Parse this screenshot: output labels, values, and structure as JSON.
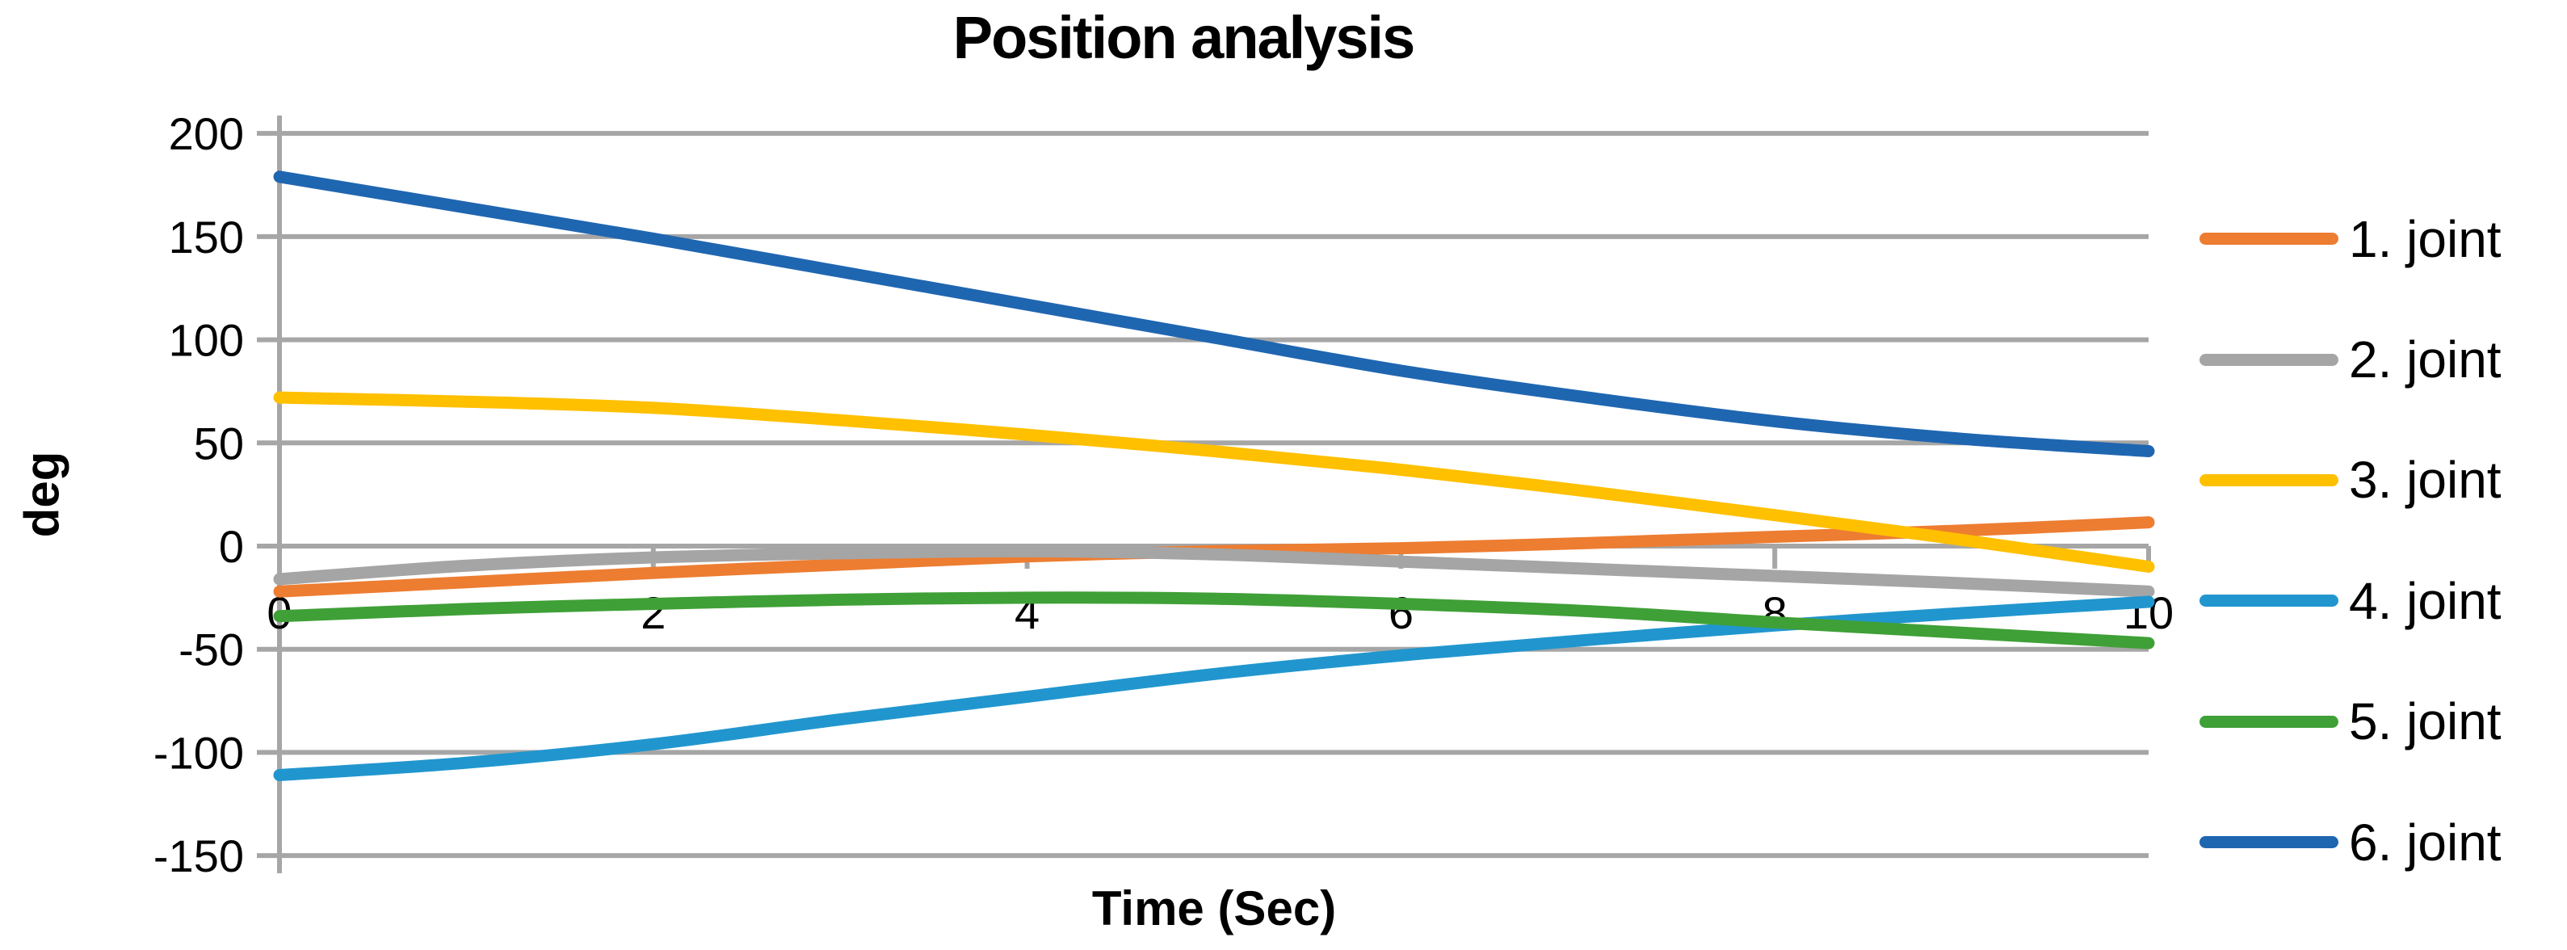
{
  "chart": {
    "title": "Position analysis",
    "axis_color": "#A6A6A6",
    "text_color": "#000000",
    "background": "#FFFFFF",
    "legend_labels": [
      "1. joint",
      "2. joint",
      "3. joint",
      "4. joint",
      "5. joint",
      "6. joint"
    ]
  },
  "chart_data": {
    "type": "line",
    "title": "Position analysis",
    "xlabel": "Time (Sec)",
    "ylabel": "deg",
    "x": [
      0,
      1,
      2,
      3,
      4,
      5,
      6,
      7,
      8,
      9,
      10
    ],
    "x_ticks": [
      0,
      2,
      4,
      6,
      8,
      10
    ],
    "y_ticks": [
      200,
      150,
      100,
      50,
      0,
      -50,
      -100,
      -150
    ],
    "xlim": [
      0,
      10
    ],
    "ylim": [
      -150,
      200
    ],
    "grid": true,
    "legend_position": "right",
    "series": [
      {
        "name": "1. joint",
        "color": "#ED7D31",
        "values": [
          -22,
          -17.5,
          -13,
          -9,
          -5,
          -2.5,
          -1,
          1.5,
          4.5,
          7.5,
          11.5
        ]
      },
      {
        "name": "2. joint",
        "color": "#A5A5A5",
        "values": [
          -16,
          -9.5,
          -5.5,
          -3.5,
          -2.5,
          -4,
          -7.5,
          -11,
          -14.5,
          -18,
          -22
        ]
      },
      {
        "name": "3. joint",
        "color": "#FFC000",
        "values": [
          72,
          70,
          67,
          61,
          54,
          46,
          37,
          26.5,
          15,
          3,
          -10
        ]
      },
      {
        "name": "4. joint",
        "color": "#2196CE",
        "values": [
          -111,
          -105,
          -96,
          -84,
          -73,
          -62,
          -53,
          -45.5,
          -38.5,
          -32.5,
          -27
        ]
      },
      {
        "name": "5. joint",
        "color": "#3FA037",
        "values": [
          -34,
          -30.5,
          -28,
          -26,
          -25,
          -25.5,
          -28,
          -31.5,
          -37,
          -42,
          -47
        ]
      },
      {
        "name": "6. joint",
        "color": "#1F66B1",
        "values": [
          179,
          164,
          149,
          133,
          117,
          101,
          85,
          72,
          60.5,
          52,
          46
        ]
      }
    ]
  }
}
